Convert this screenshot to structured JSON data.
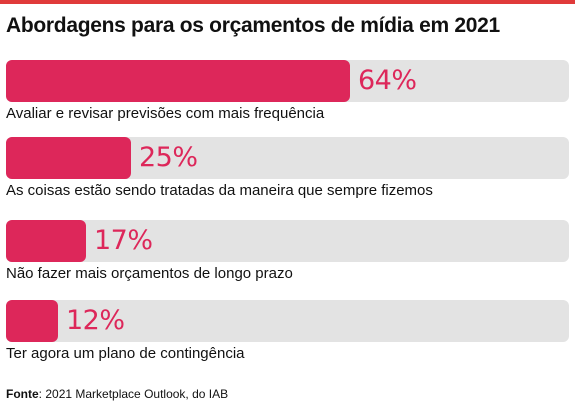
{
  "accent_color": "#e03a3a",
  "bar_color": "#dd275a",
  "track_color": "#e3e3e3",
  "source": {
    "label": "Fonte",
    "text": ": 2021 Marketplace Outlook, do IAB"
  },
  "chart_data": {
    "type": "bar",
    "orientation": "horizontal",
    "title": "Abordagens para os orçamentos de mídia em 2021",
    "categories": [
      "Avaliar e revisar previsões com mais frequência",
      "As coisas estão sendo tratadas da maneira que sempre fizemos",
      "Não fazer mais orçamentos de longo prazo",
      "Ter agora um plano de contingência"
    ],
    "values": [
      64,
      25,
      17,
      12
    ],
    "value_labels": [
      "64%",
      "25%",
      "17%",
      "12%"
    ],
    "xlim": [
      0,
      100
    ],
    "grid": false,
    "legend": "none"
  }
}
